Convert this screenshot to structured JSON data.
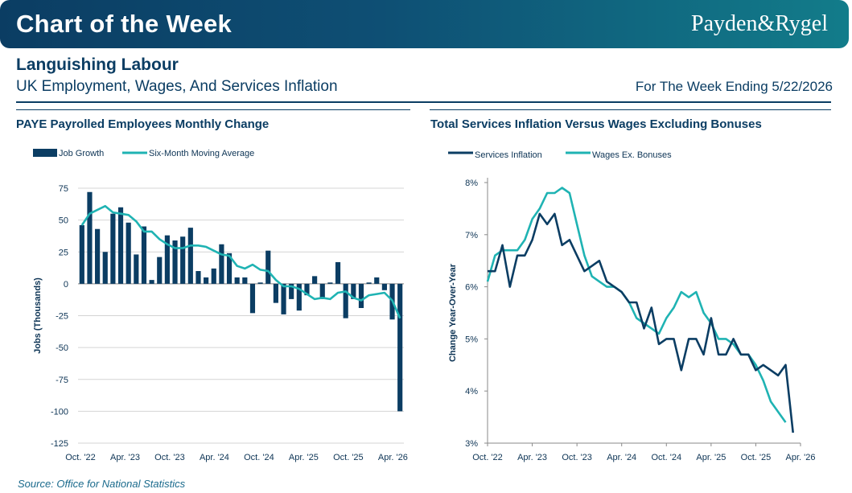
{
  "header": {
    "banner_title": "Chart of the Week",
    "brand": "Payden&Rygel"
  },
  "report": {
    "title": "Languishing Labour",
    "subtitle": "UK Employment, Wages, And Services Inflation",
    "week_ending": "For The Week Ending 5/22/2026"
  },
  "source": "Source: Office for National Statistics",
  "colors": {
    "navy": "#0b3d63",
    "teal": "#1fb3b3",
    "grid": "#d4d4d4"
  },
  "chart_data": [
    {
      "type": "bar",
      "title": "PAYE Payrolled Employees Monthly Change",
      "ylabel": "Jobs (Thousands)",
      "xlabel": "",
      "ylim": [
        -125,
        75
      ],
      "yticks": [
        75,
        50,
        25,
        0,
        -25,
        -50,
        -75,
        -100,
        -125
      ],
      "x_tick_labels": [
        "Oct. '22",
        "Apr. '23",
        "Oct. '23",
        "Apr. '24",
        "Oct. '24",
        "Apr. '25",
        "Oct. '25",
        "Apr. '26"
      ],
      "grid": true,
      "legend_position": "top-left",
      "series": [
        {
          "name": "Job Growth",
          "type": "bar",
          "values": [
            46,
            72,
            43,
            25,
            55,
            60,
            48,
            23,
            45,
            3,
            21,
            38,
            34,
            37,
            44,
            10,
            5,
            12,
            31,
            24,
            5,
            5,
            -23,
            1,
            26,
            -15,
            -24,
            -12,
            -21,
            -9,
            6,
            -12,
            1,
            17,
            -27,
            -12,
            -19,
            1,
            5,
            -5,
            -28,
            -100
          ]
        },
        {
          "name": "Six-Month Moving Average",
          "type": "line",
          "values": [
            46,
            55,
            58,
            61,
            56,
            55,
            54,
            49,
            41,
            41,
            35,
            31,
            28,
            28,
            30,
            30,
            29,
            26,
            23,
            22,
            14,
            12,
            15,
            11,
            10,
            3,
            -2,
            -2,
            -4,
            -8,
            -12,
            -11,
            -12,
            -7,
            -6,
            -11,
            -13,
            -9,
            -8,
            -7,
            -13,
            -27
          ]
        }
      ]
    },
    {
      "type": "line",
      "title": "Total Services Inflation Versus Wages Excluding Bonuses",
      "ylabel": "Change Year-Over-Year",
      "xlabel": "",
      "ylim": [
        3,
        8
      ],
      "yticks": [
        "8%",
        "7%",
        "6%",
        "5%",
        "4%",
        "3%"
      ],
      "x_tick_labels": [
        "Oct. '22",
        "Apr. '23",
        "Oct. '23",
        "Apr. '24",
        "Oct. '24",
        "Apr. '25",
        "Oct. '25",
        "Apr. '26"
      ],
      "grid": false,
      "legend_position": "top-left",
      "series": [
        {
          "name": "Services Inflation",
          "values": [
            6.3,
            6.3,
            6.8,
            6.0,
            6.6,
            6.6,
            6.9,
            7.4,
            7.2,
            7.4,
            6.8,
            6.9,
            6.6,
            6.3,
            6.4,
            6.5,
            6.1,
            6.0,
            5.9,
            5.7,
            5.7,
            5.2,
            5.6,
            4.9,
            5.0,
            5.0,
            4.4,
            5.0,
            5.0,
            4.7,
            5.4,
            4.7,
            4.7,
            5.0,
            4.7,
            4.7,
            4.4,
            4.5,
            4.4,
            4.3,
            4.5,
            3.2
          ]
        },
        {
          "name": "Wages Ex. Bonuses",
          "values": [
            6.1,
            6.6,
            6.7,
            6.7,
            6.7,
            6.9,
            7.3,
            7.5,
            7.8,
            7.8,
            7.9,
            7.8,
            7.2,
            6.6,
            6.2,
            6.1,
            6.0,
            6.0,
            5.9,
            5.7,
            5.4,
            5.3,
            5.2,
            5.1,
            5.4,
            5.6,
            5.9,
            5.8,
            5.9,
            5.5,
            5.3,
            5.0,
            5.0,
            4.9,
            4.7,
            4.7,
            4.5,
            4.2,
            3.8,
            3.6,
            3.4
          ]
        }
      ]
    }
  ]
}
